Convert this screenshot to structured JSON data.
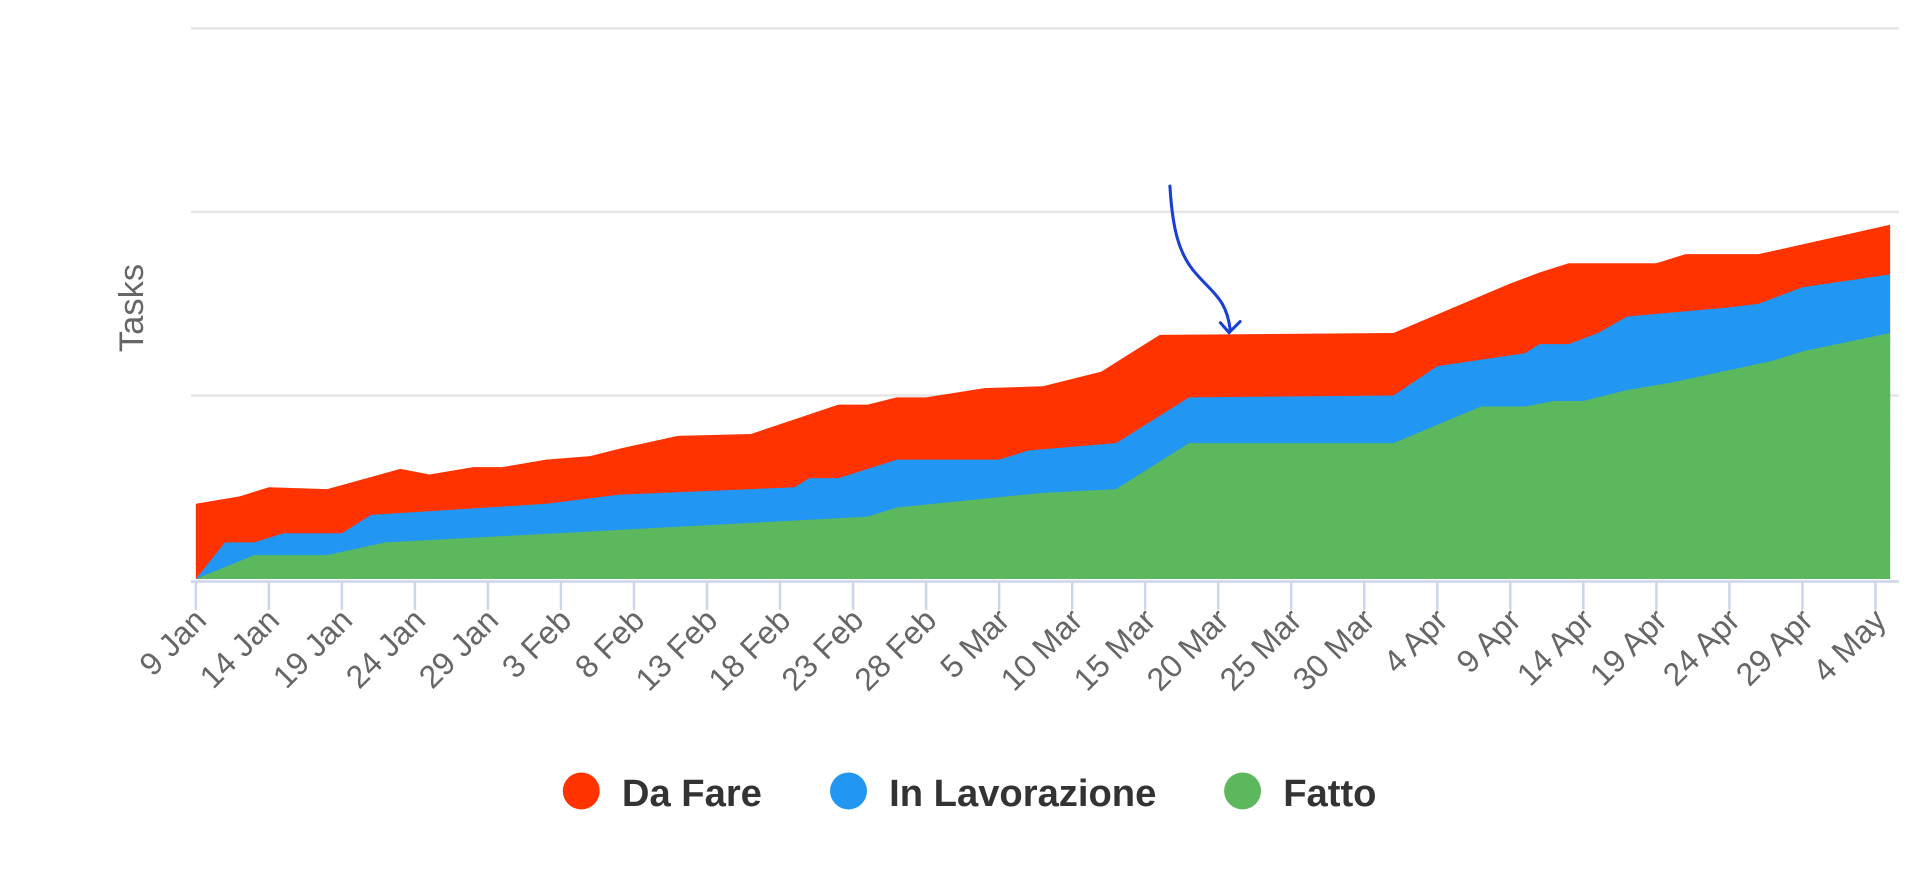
{
  "chart_data": {
    "type": "area",
    "stacked": true,
    "values_are_cumulative_tops": true,
    "title": "",
    "xlabel": "",
    "ylabel": "Tasks",
    "ylim": [
      0,
      30
    ],
    "y_gridlines": [
      10,
      20,
      30
    ],
    "y_tick_labels_shown": false,
    "grid": true,
    "legend_position": "bottom",
    "x_tick_labels": [
      "9 Jan",
      "14 Jan",
      "19 Jan",
      "24 Jan",
      "29 Jan",
      "3 Feb",
      "8 Feb",
      "13 Feb",
      "18 Feb",
      "23 Feb",
      "28 Feb",
      "5 Mar",
      "10 Mar",
      "15 Mar",
      "20 Mar",
      "25 Mar",
      "30 Mar",
      "4 Apr",
      "9 Apr",
      "14 Apr",
      "19 Apr",
      "24 Apr",
      "29 Apr",
      "4 May"
    ],
    "series": [
      {
        "name": "Da Fare",
        "color": "#ff3300",
        "points": [
          [
            "9 Jan",
            4.1
          ],
          [
            "12 Jan",
            4.5
          ],
          [
            "14 Jan",
            5.0
          ],
          [
            "18 Jan",
            4.9
          ],
          [
            "23 Jan",
            6.0
          ],
          [
            "25 Jan",
            5.7
          ],
          [
            "28 Jan",
            6.1
          ],
          [
            "30 Jan",
            6.1
          ],
          [
            "2 Feb",
            6.5
          ],
          [
            "5 Feb",
            6.7
          ],
          [
            "7 Feb",
            7.1
          ],
          [
            "11 Feb",
            7.8
          ],
          [
            "16 Feb",
            7.9
          ],
          [
            "22 Feb",
            9.5
          ],
          [
            "24 Feb",
            9.5
          ],
          [
            "26 Feb",
            9.9
          ],
          [
            "28 Feb",
            9.9
          ],
          [
            "4 Mar",
            10.4
          ],
          [
            "8 Mar",
            10.5
          ],
          [
            "12 Mar",
            11.3
          ],
          [
            "16 Mar",
            13.3
          ],
          [
            "1 Apr",
            13.4
          ],
          [
            "9 Apr",
            16.1
          ],
          [
            "11 Apr",
            16.7
          ],
          [
            "13 Apr",
            17.2
          ],
          [
            "19 Apr",
            17.2
          ],
          [
            "21 Apr",
            17.7
          ],
          [
            "26 Apr",
            17.7
          ],
          [
            "5 May",
            19.3
          ]
        ]
      },
      {
        "name": "In Lavorazione",
        "color": "#2196f3",
        "points": [
          [
            "9 Jan",
            0
          ],
          [
            "11 Jan",
            2.0
          ],
          [
            "13 Jan",
            2.0
          ],
          [
            "15 Jan",
            2.5
          ],
          [
            "19 Jan",
            2.5
          ],
          [
            "21 Jan",
            3.5
          ],
          [
            "2 Feb",
            4.1
          ],
          [
            "7 Feb",
            4.6
          ],
          [
            "19 Feb",
            5.0
          ],
          [
            "20 Feb",
            5.5
          ],
          [
            "22 Feb",
            5.5
          ],
          [
            "26 Feb",
            6.5
          ],
          [
            "5 Mar",
            6.5
          ],
          [
            "7 Mar",
            7.0
          ],
          [
            "13 Mar",
            7.4
          ],
          [
            "18 Mar",
            9.9
          ],
          [
            "1 Apr",
            10.0
          ],
          [
            "4 Apr",
            11.6
          ],
          [
            "10 Apr",
            12.3
          ],
          [
            "11 Apr",
            12.8
          ],
          [
            "13 Apr",
            12.8
          ],
          [
            "15 Apr",
            13.4
          ],
          [
            "17 Apr",
            14.3
          ],
          [
            "24 Apr",
            14.8
          ],
          [
            "26 Apr",
            15.0
          ],
          [
            "29 Apr",
            15.9
          ],
          [
            "5 May",
            16.6
          ]
        ]
      },
      {
        "name": "Fatto",
        "color": "#5cb85c",
        "points": [
          [
            "9 Jan",
            0
          ],
          [
            "13 Jan",
            1.3
          ],
          [
            "18 Jan",
            1.3
          ],
          [
            "22 Jan",
            2.0
          ],
          [
            "24 Feb",
            3.4
          ],
          [
            "26 Feb",
            3.9
          ],
          [
            "8 Mar",
            4.7
          ],
          [
            "13 Mar",
            4.9
          ],
          [
            "18 Mar",
            7.4
          ],
          [
            "1 Apr",
            7.4
          ],
          [
            "7 Apr",
            9.4
          ],
          [
            "10 Apr",
            9.4
          ],
          [
            "12 Apr",
            9.7
          ],
          [
            "14 Apr",
            9.7
          ],
          [
            "17 Apr",
            10.3
          ],
          [
            "20 Apr",
            10.7
          ],
          [
            "27 Apr",
            11.9
          ],
          [
            "29 Apr",
            12.4
          ],
          [
            "5 May",
            13.4
          ]
        ]
      }
    ],
    "annotation": {
      "type": "hand-drawn-arrow",
      "color": "#1a3fd6",
      "points_to": "20 Mar"
    }
  },
  "legend": [
    {
      "label": "Da Fare",
      "color": "#ff3300"
    },
    {
      "label": "In Lavorazione",
      "color": "#2196f3"
    },
    {
      "label": "Fatto",
      "color": "#5cb85c"
    }
  ]
}
